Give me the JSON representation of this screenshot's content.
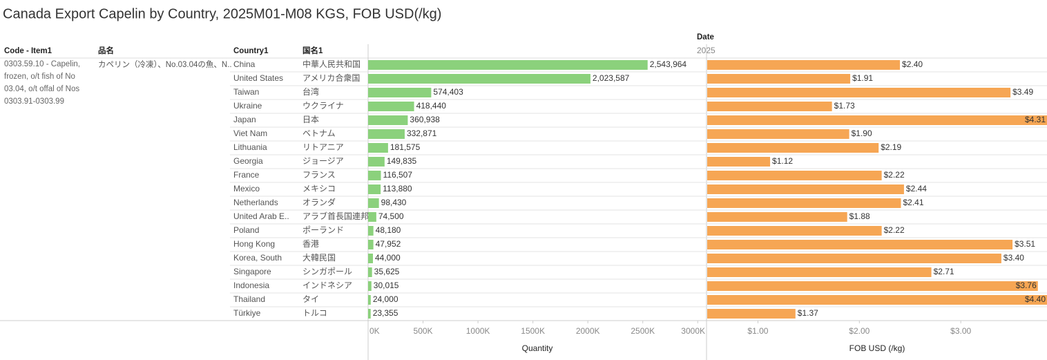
{
  "title": "Canada Export Capelin by Country, 2025M01-M08 KGS, FOB USD(/kg)",
  "column_header": "Date",
  "column_value": "2025",
  "row_headers": [
    "Code - Item1",
    "品名",
    "Country1",
    "国名1"
  ],
  "item": {
    "code": "0303.59.10 - Capelin, frozen, o/t fish of No 03.04, o/t offal of Nos 0303.91-0303.99",
    "name": "カペリン（冷凍）、No.03.04の魚、N.."
  },
  "categories": [
    "China",
    "United States",
    "Taiwan",
    "Ukraine",
    "Japan",
    "Viet Nam",
    "Lithuania",
    "Georgia",
    "France",
    "Mexico",
    "Netherlands",
    "United Arab E..",
    "Poland",
    "Hong Kong",
    "Korea, South",
    "Singapore",
    "Indonesia",
    "Thailand",
    "Türkiye"
  ],
  "categories_ja": [
    "中華人民共和国",
    "アメリカ合衆国",
    "台湾",
    "ウクライナ",
    "日本",
    "ベトナム",
    "リトアニア",
    "ジョージア",
    "フランス",
    "メキシコ",
    "オランダ",
    "アラブ首長国連邦",
    "ポーランド",
    "香港",
    "大韓民国",
    "シンガポール",
    "インドネシア",
    "タイ",
    "トルコ"
  ],
  "chart_data": [
    {
      "type": "bar",
      "xlabel": "Quantity",
      "color": "#8bd17c",
      "values": [
        2543964,
        2023587,
        574403,
        418440,
        360938,
        332871,
        181575,
        149835,
        116507,
        113880,
        98430,
        74500,
        48180,
        47952,
        44000,
        35625,
        30015,
        24000,
        23355
      ],
      "value_labels": [
        "2,543,964",
        "2,023,587",
        "574,403",
        "418,440",
        "360,938",
        "332,871",
        "181,575",
        "149,835",
        "116,507",
        "113,880",
        "98,430",
        "74,500",
        "48,180",
        "47,952",
        "44,000",
        "35,625",
        "30,015",
        "24,000",
        "23,355"
      ],
      "xlim": [
        0,
        3080000
      ],
      "xticks": [
        {
          "value": 0,
          "label": "0K"
        },
        {
          "value": 500000,
          "label": "500K"
        },
        {
          "value": 1000000,
          "label": "1000K"
        },
        {
          "value": 1500000,
          "label": "1500K"
        },
        {
          "value": 2000000,
          "label": "2000K"
        },
        {
          "value": 2500000,
          "label": "2500K"
        },
        {
          "value": 3000000,
          "label": "3000K"
        }
      ]
    },
    {
      "type": "bar",
      "xlabel": "FOB USD (/kg)",
      "color": "#f6a654",
      "values": [
        2.4,
        1.91,
        3.49,
        1.73,
        4.31,
        1.9,
        2.19,
        1.12,
        2.22,
        2.44,
        2.41,
        1.88,
        2.22,
        3.51,
        3.4,
        2.71,
        3.76,
        4.4,
        1.37
      ],
      "value_labels": [
        "$2.40",
        "$1.91",
        "$3.49",
        "$1.73",
        "$4.31",
        "$1.90",
        "$2.19",
        "$1.12",
        "$2.22",
        "$2.44",
        "$2.41",
        "$1.88",
        "$2.22",
        "$3.51",
        "$3.40",
        "$2.71",
        "$3.76",
        "$4.40",
        "$1.37"
      ],
      "xlim": [
        0.5,
        3.85
      ],
      "xticks": [
        {
          "value": 1,
          "label": "$1.00"
        },
        {
          "value": 2,
          "label": "$2.00"
        },
        {
          "value": 3,
          "label": "$3.00"
        }
      ]
    }
  ]
}
